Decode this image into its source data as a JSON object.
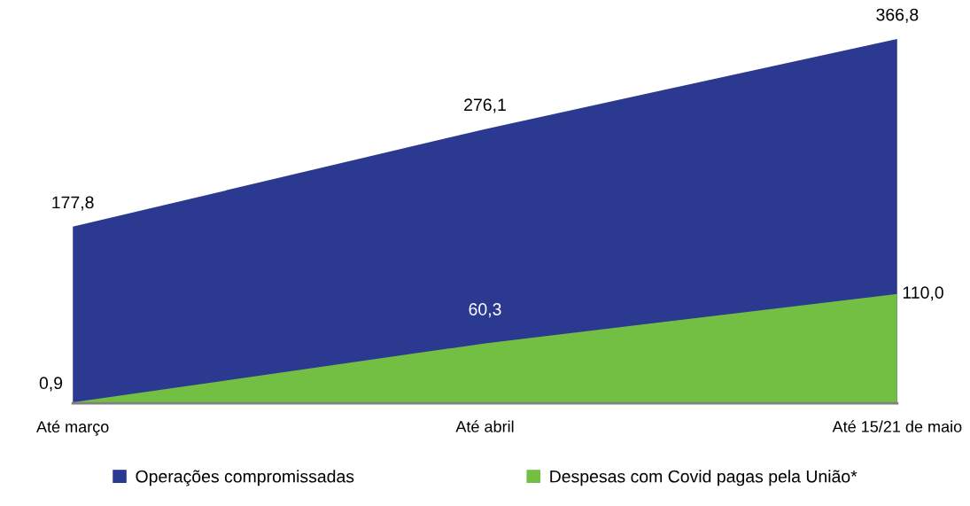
{
  "chart_data": {
    "type": "area",
    "categories": [
      "Até março",
      "Até abril",
      "Até 15/21 de maio"
    ],
    "series": [
      {
        "name": "Operações compromissadas",
        "color": "#2b3990",
        "values": [
          177.8,
          276.1,
          366.8
        ],
        "value_labels": [
          "177,8",
          "276,1",
          "366,8"
        ]
      },
      {
        "name": "Despesas com Covid pagas pela União*",
        "color": "#72bf44",
        "values": [
          0.9,
          60.3,
          110.0
        ],
        "value_labels": [
          "0,9",
          "60,3",
          "110,0"
        ]
      }
    ],
    "legend": "bottom",
    "grid": false
  }
}
